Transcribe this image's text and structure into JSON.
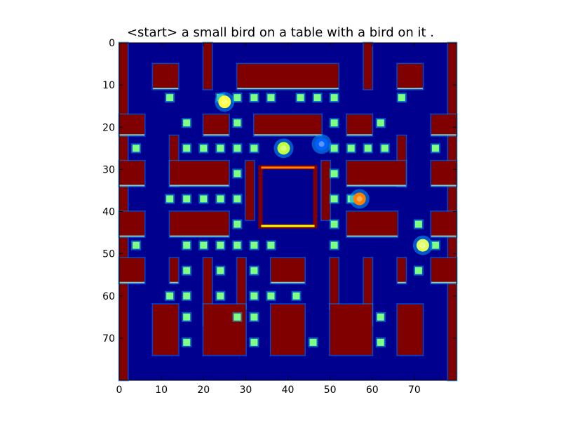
{
  "title": "<start> a small bird on a table with a bird on it .",
  "chart_data": {
    "type": "heatmap",
    "colormap": "jet",
    "grid_size": [
      80,
      80
    ],
    "xlim": [
      0,
      80
    ],
    "ylim": [
      80,
      0
    ],
    "x_ticks": [
      0,
      10,
      20,
      30,
      40,
      50,
      60,
      70
    ],
    "y_ticks": [
      0,
      10,
      20,
      30,
      40,
      50,
      60,
      70
    ],
    "x_tick_labels": [
      "0",
      "10",
      "20",
      "30",
      "40",
      "50",
      "60",
      "70"
    ],
    "y_tick_labels": [
      "0",
      "10",
      "20",
      "30",
      "40",
      "50",
      "60",
      "70"
    ],
    "background_color": "#00008f",
    "wall_color": "#800000",
    "wall_edge_colors": [
      "#0080ff",
      "#80ffff",
      "#ffff00",
      "#ff8000"
    ],
    "pellet_color": "#80ff80",
    "walls": [
      {
        "x": 0,
        "y": 0,
        "w": 2,
        "h": 80
      },
      {
        "x": 78,
        "y": 0,
        "w": 2,
        "h": 80
      },
      {
        "x": 8,
        "y": 5,
        "w": 6,
        "h": 6
      },
      {
        "x": 20,
        "y": 0,
        "w": 2,
        "h": 11
      },
      {
        "x": 28,
        "y": 5,
        "w": 24,
        "h": 6
      },
      {
        "x": 58,
        "y": 0,
        "w": 2,
        "h": 11
      },
      {
        "x": 66,
        "y": 5,
        "w": 6,
        "h": 6
      },
      {
        "x": 0,
        "y": 17,
        "w": 6,
        "h": 5
      },
      {
        "x": 20,
        "y": 17,
        "w": 6,
        "h": 5
      },
      {
        "x": 32,
        "y": 17,
        "w": 16,
        "h": 5
      },
      {
        "x": 54,
        "y": 17,
        "w": 6,
        "h": 5
      },
      {
        "x": 74,
        "y": 17,
        "w": 6,
        "h": 5
      },
      {
        "x": 12,
        "y": 22,
        "w": 2,
        "h": 12
      },
      {
        "x": 12,
        "y": 28,
        "w": 14,
        "h": 6
      },
      {
        "x": 66,
        "y": 22,
        "w": 2,
        "h": 12
      },
      {
        "x": 54,
        "y": 28,
        "w": 14,
        "h": 6
      },
      {
        "x": 0,
        "y": 28,
        "w": 6,
        "h": 6
      },
      {
        "x": 74,
        "y": 28,
        "w": 6,
        "h": 6
      },
      {
        "x": 30,
        "y": 28,
        "w": 2,
        "h": 14
      },
      {
        "x": 48,
        "y": 28,
        "w": 2,
        "h": 14
      },
      {
        "x": 12,
        "y": 40,
        "w": 14,
        "h": 6
      },
      {
        "x": 54,
        "y": 40,
        "w": 12,
        "h": 6
      },
      {
        "x": 0,
        "y": 40,
        "w": 6,
        "h": 6
      },
      {
        "x": 74,
        "y": 40,
        "w": 6,
        "h": 6
      },
      {
        "x": 0,
        "y": 51,
        "w": 6,
        "h": 6
      },
      {
        "x": 74,
        "y": 51,
        "w": 6,
        "h": 6
      },
      {
        "x": 20,
        "y": 51,
        "w": 2,
        "h": 16
      },
      {
        "x": 58,
        "y": 51,
        "w": 2,
        "h": 16
      },
      {
        "x": 36,
        "y": 51,
        "w": 8,
        "h": 6
      },
      {
        "x": 12,
        "y": 51,
        "w": 2,
        "h": 6
      },
      {
        "x": 66,
        "y": 51,
        "w": 2,
        "h": 6
      },
      {
        "x": 28,
        "y": 51,
        "w": 2,
        "h": 12
      },
      {
        "x": 50,
        "y": 51,
        "w": 2,
        "h": 12
      },
      {
        "x": 8,
        "y": 62,
        "w": 6,
        "h": 12
      },
      {
        "x": 20,
        "y": 62,
        "w": 10,
        "h": 12
      },
      {
        "x": 36,
        "y": 62,
        "w": 8,
        "h": 12
      },
      {
        "x": 50,
        "y": 62,
        "w": 10,
        "h": 12
      },
      {
        "x": 66,
        "y": 62,
        "w": 6,
        "h": 12
      }
    ],
    "ghost_box": {
      "x": 33,
      "y": 29,
      "w": 14,
      "h": 15
    },
    "pellets": [
      [
        12,
        13
      ],
      [
        24,
        13
      ],
      [
        28,
        13
      ],
      [
        32,
        13
      ],
      [
        36,
        13
      ],
      [
        43,
        13
      ],
      [
        47,
        13
      ],
      [
        51,
        13
      ],
      [
        67,
        13
      ],
      [
        16,
        19
      ],
      [
        28,
        19
      ],
      [
        51,
        19
      ],
      [
        62,
        19
      ],
      [
        4,
        25
      ],
      [
        16,
        25
      ],
      [
        20,
        25
      ],
      [
        24,
        25
      ],
      [
        28,
        25
      ],
      [
        32,
        25
      ],
      [
        51,
        25
      ],
      [
        55,
        25
      ],
      [
        59,
        25
      ],
      [
        63,
        25
      ],
      [
        75,
        25
      ],
      [
        28,
        31
      ],
      [
        51,
        31
      ],
      [
        12,
        37
      ],
      [
        16,
        37
      ],
      [
        20,
        37
      ],
      [
        24,
        37
      ],
      [
        28,
        37
      ],
      [
        51,
        37
      ],
      [
        55,
        37
      ],
      [
        28,
        43
      ],
      [
        51,
        43
      ],
      [
        71,
        43
      ],
      [
        4,
        48
      ],
      [
        16,
        48
      ],
      [
        20,
        48
      ],
      [
        24,
        48
      ],
      [
        28,
        48
      ],
      [
        32,
        48
      ],
      [
        36,
        48
      ],
      [
        51,
        48
      ],
      [
        75,
        48
      ],
      [
        16,
        54
      ],
      [
        24,
        54
      ],
      [
        32,
        54
      ],
      [
        71,
        54
      ],
      [
        12,
        60
      ],
      [
        16,
        60
      ],
      [
        24,
        60
      ],
      [
        32,
        60
      ],
      [
        36,
        60
      ],
      [
        42,
        60
      ],
      [
        16,
        65
      ],
      [
        28,
        65
      ],
      [
        32,
        65
      ],
      [
        62,
        65
      ],
      [
        16,
        71
      ],
      [
        32,
        71
      ],
      [
        46,
        71
      ],
      [
        62,
        71
      ]
    ],
    "characters": [
      {
        "name": "pacman",
        "x": 25,
        "y": 14,
        "color": "#ffff40"
      },
      {
        "name": "ghost-1",
        "x": 39,
        "y": 25,
        "color": "#c0ff40"
      },
      {
        "name": "ghost-2",
        "x": 48,
        "y": 24,
        "color": "#0060ff"
      },
      {
        "name": "ghost-3",
        "x": 57,
        "y": 37,
        "color": "#ff8000"
      },
      {
        "name": "ghost-4",
        "x": 72,
        "y": 48,
        "color": "#e0ff60"
      }
    ]
  }
}
